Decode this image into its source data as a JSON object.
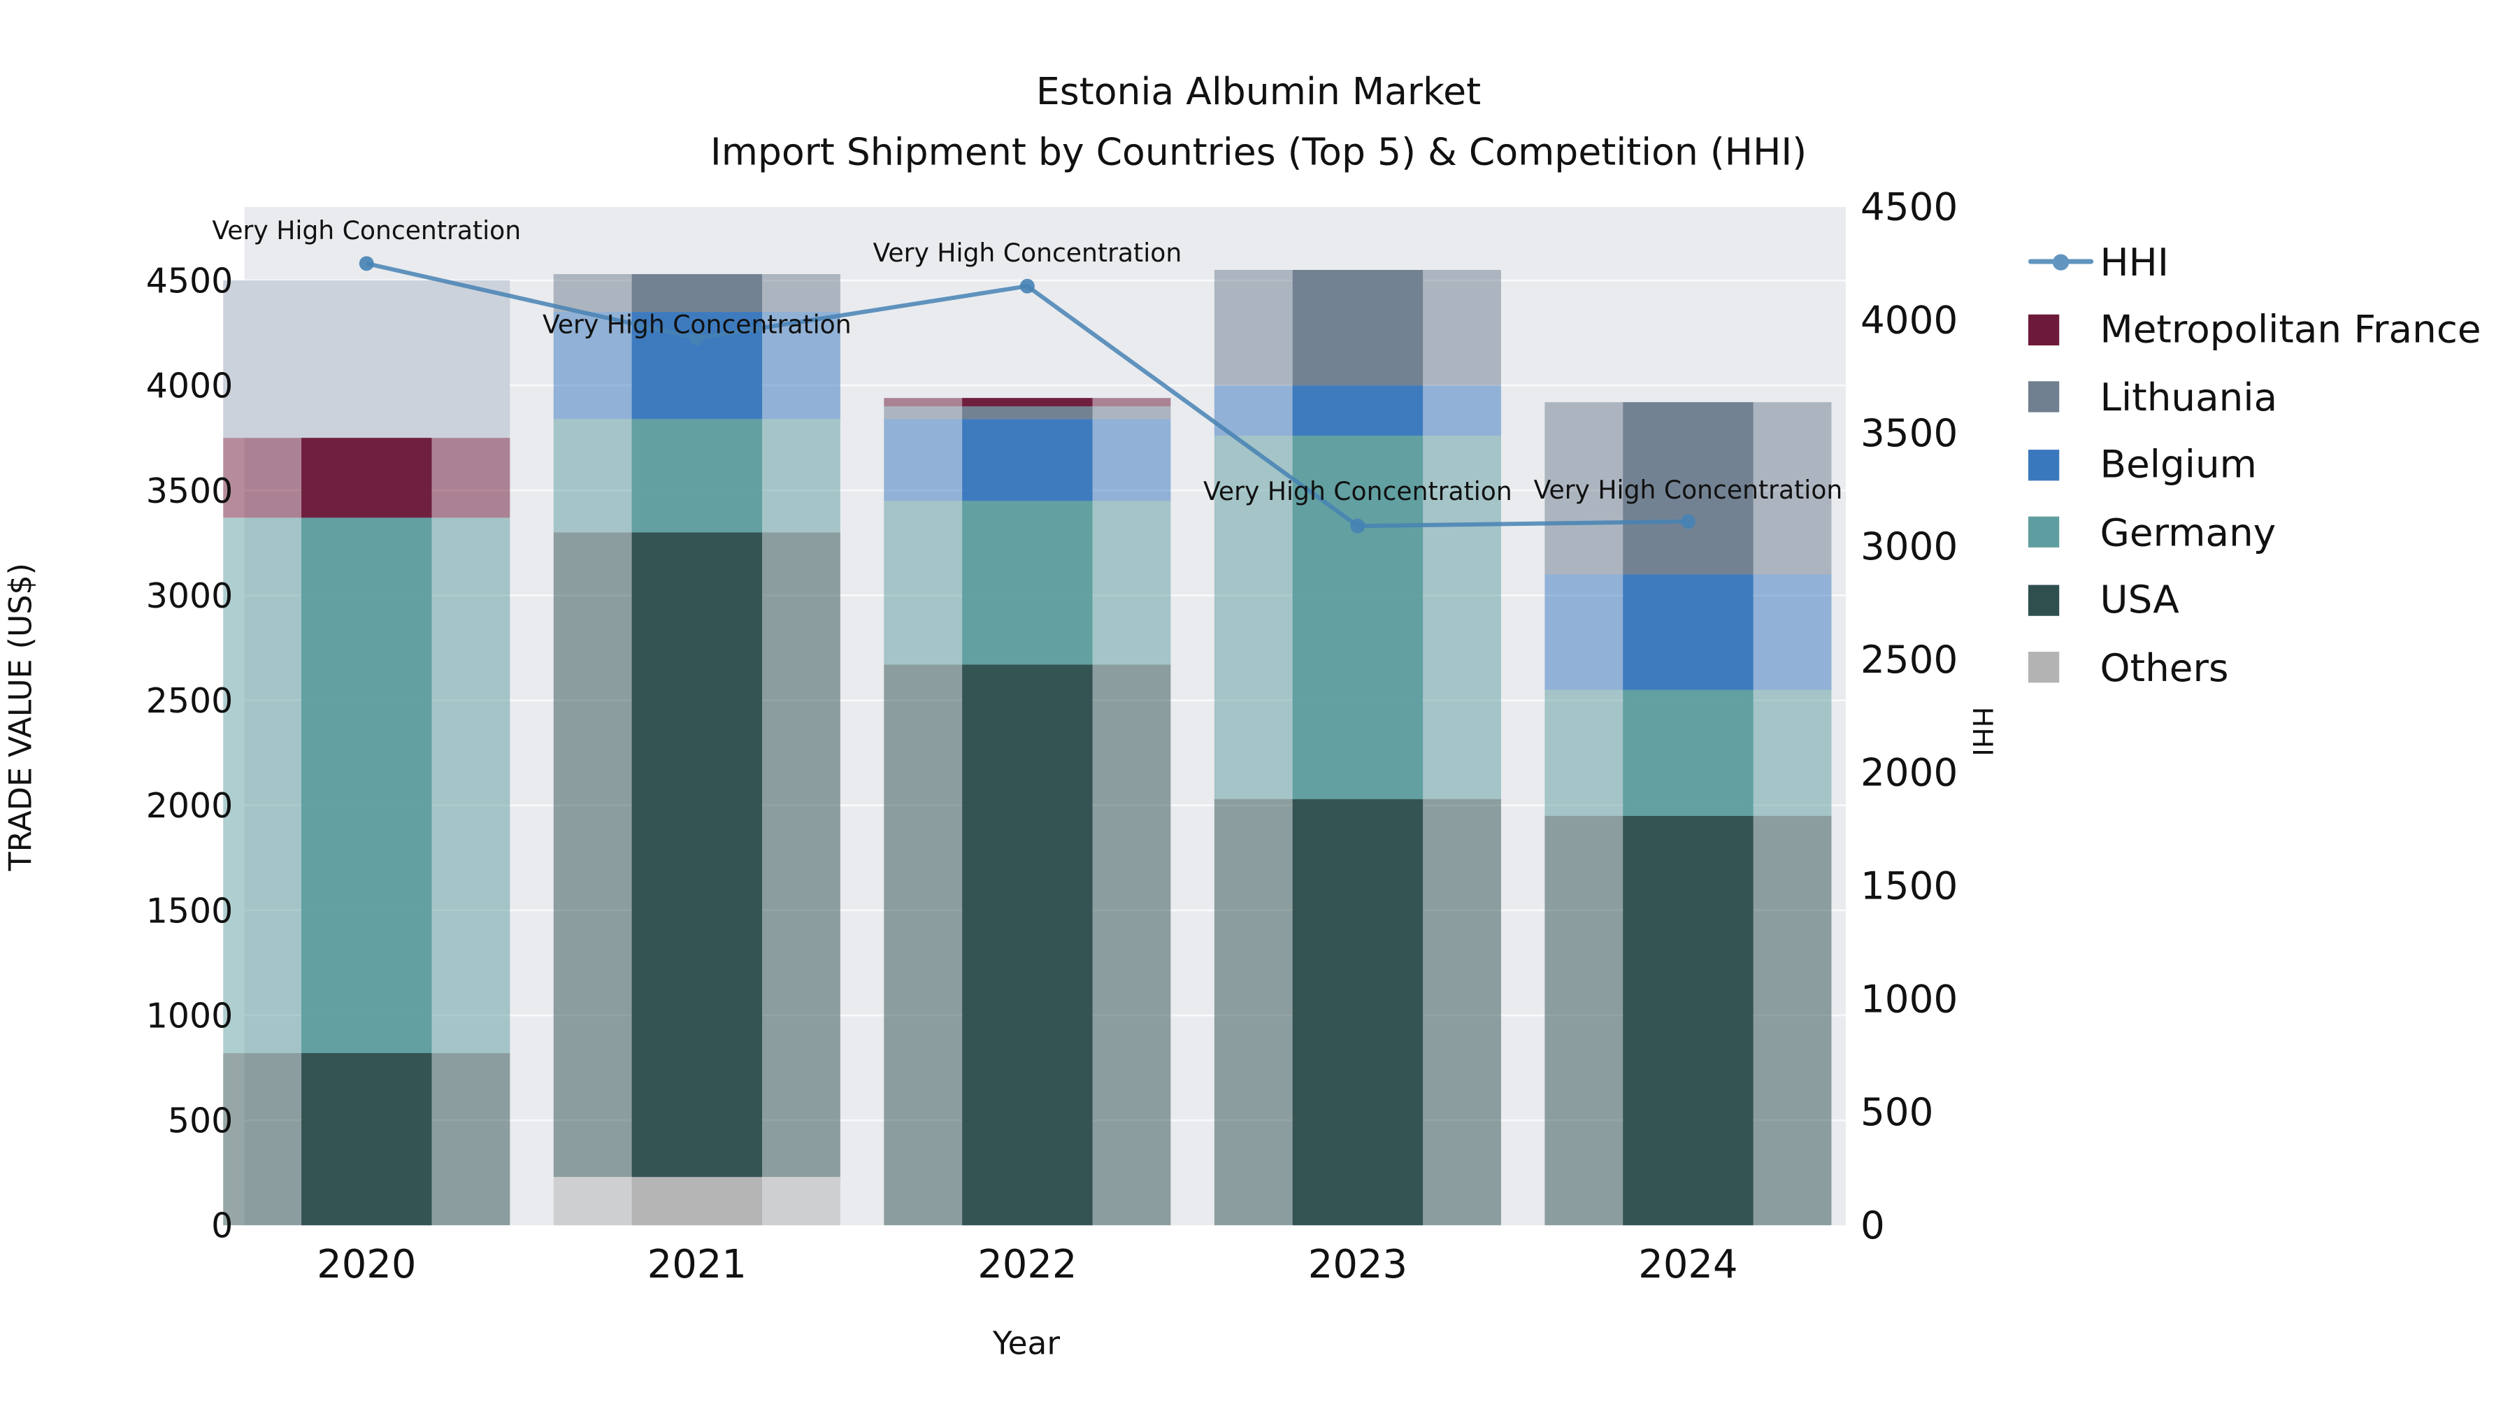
{
  "title": {
    "line1": "Estonia Albumin Market",
    "line2": "Import Shipment by Countries (Top 5) & Competition (HHI)"
  },
  "axes": {
    "x_label": "Year",
    "y_left_label": "TRADE VALUE (US$)",
    "y_right_label": "HHI"
  },
  "legend": {
    "items": [
      {
        "label": "HHI",
        "type": "line",
        "color": "#4682b4"
      },
      {
        "label": "Metropolitan France",
        "type": "square",
        "color": "#6d1a3a"
      },
      {
        "label": "Lithuania",
        "type": "square",
        "color": "#708090"
      },
      {
        "label": "Belgium",
        "type": "square",
        "color": "#3a78bd"
      },
      {
        "label": "Germany",
        "type": "square",
        "color": "#5f9ea0"
      },
      {
        "label": "USA",
        "type": "square",
        "color": "#2f4f4f"
      },
      {
        "label": "Others",
        "type": "square",
        "color": "#b3b3b3"
      }
    ]
  },
  "chart_data": {
    "type": "bar",
    "subtype": "stacked-bars-with-line-overlay",
    "title": "Estonia Albumin Market",
    "subtitle": "Import Shipment by Countries (Top 5) & Competition (HHI)",
    "xlabel": "Year",
    "ylabel": "TRADE VALUE (US$)",
    "y2label": "HHI",
    "categories": [
      "2020",
      "2021",
      "2022",
      "2023",
      "2024"
    ],
    "y_left": {
      "min": 0,
      "max": 4850,
      "ticks": [
        0,
        500,
        1000,
        1500,
        2000,
        2500,
        3000,
        3500,
        4000,
        4500
      ]
    },
    "y_right": {
      "min": 0,
      "max": 4500,
      "ticks": [
        0,
        500,
        1000,
        1500,
        2000,
        2500,
        3000,
        3500,
        4000,
        4500
      ]
    },
    "stack_order_bottom_to_top": [
      "Others",
      "USA",
      "Germany",
      "Belgium",
      "Lithuania",
      "Metropolitan France"
    ],
    "series": [
      {
        "name": "Others",
        "color": "#b3b3b3",
        "values": [
          0,
          230,
          0,
          0,
          0
        ]
      },
      {
        "name": "USA",
        "color": "#2f4f4f",
        "values": [
          820,
          3070,
          2670,
          2030,
          1950
        ]
      },
      {
        "name": "Germany",
        "color": "#5f9ea0",
        "values": [
          2550,
          540,
          780,
          1730,
          600
        ]
      },
      {
        "name": "Belgium",
        "color": "#3a78bd",
        "values": [
          0,
          510,
          390,
          240,
          550
        ]
      },
      {
        "name": "Lithuania",
        "color": "#708090",
        "values": [
          0,
          180,
          60,
          550,
          820
        ]
      },
      {
        "name": "Metropolitan France",
        "color": "#6d1a3a",
        "values": [
          380,
          0,
          40,
          0,
          0
        ]
      }
    ],
    "bar_totals": [
      3750,
      4530,
      3940,
      4550,
      3920
    ],
    "backdrop_totals": [
      4500,
      4530,
      3940,
      4550,
      3920
    ],
    "backdrop_color": "#ccd2dc",
    "plot_bg": "#e9ebee",
    "grid": true,
    "legend_position": "right",
    "line": {
      "name": "HHI",
      "axis": "right",
      "color": "#4682b4",
      "values": [
        4250,
        3920,
        4150,
        3090,
        3110
      ],
      "annotations": [
        "Very High Concentration",
        "Very High Concentration",
        "Very High Concentration",
        "Very High Concentration",
        "Very High Concentration"
      ],
      "annotation_dy": [
        -15,
        -3,
        -15,
        -16,
        -14
      ]
    }
  }
}
